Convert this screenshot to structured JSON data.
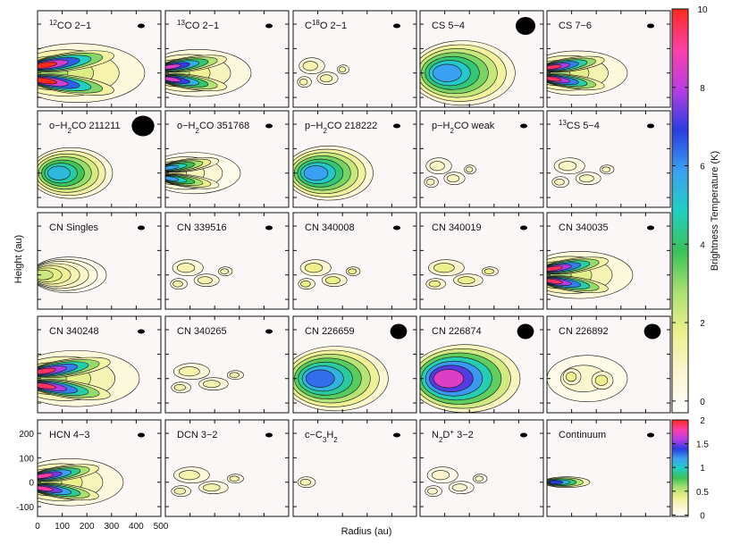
{
  "chart_data": {
    "type": "panel-grid",
    "x_label": "Radius (au)",
    "y_label": "Height (au)",
    "xlim": [
      0,
      500
    ],
    "ylim": [
      -140,
      255
    ],
    "xticks": [
      0,
      100,
      200,
      300,
      400,
      500
    ],
    "yticks": [
      -100,
      0,
      100,
      200
    ],
    "colors": [
      "#ffffff",
      "#fbf6cf",
      "#eef08c",
      "#a8e070",
      "#38c256",
      "#22cfc2",
      "#3aa0f2",
      "#2a3ce0",
      "#b83ee4",
      "#ff3fa8",
      "#ff2a1a"
    ],
    "colorbar": {
      "label": "Brightness Temperature (K)",
      "lim": [
        -0.3,
        10
      ],
      "ticks": [
        0,
        2,
        4,
        6,
        8,
        10
      ]
    },
    "colorbar2": {
      "lim": [
        -0.03,
        2
      ],
      "ticks": [
        0,
        0.5,
        1,
        1.5,
        2
      ]
    },
    "panels": [
      {
        "label": [
          {
            "t": "12",
            "s": "sup"
          },
          {
            "t": "CO 2−1"
          }
        ]
      },
      {
        "label": [
          {
            "t": "13",
            "s": "sup"
          },
          {
            "t": "CO 2−1"
          }
        ]
      },
      {
        "label": [
          {
            "t": "C"
          },
          {
            "t": "18",
            "s": "sup"
          },
          {
            "t": "O 2−1"
          }
        ]
      },
      {
        "label": [
          {
            "t": "CS 5−4"
          }
        ]
      },
      {
        "label": [
          {
            "t": "CS 7−6"
          }
        ]
      },
      {
        "label": [
          {
            "t": "o−H"
          },
          {
            "t": "2",
            "s": "sub"
          },
          {
            "t": "CO 211211"
          }
        ]
      },
      {
        "label": [
          {
            "t": "o−H"
          },
          {
            "t": "2",
            "s": "sub"
          },
          {
            "t": "CO 351768"
          }
        ]
      },
      {
        "label": [
          {
            "t": "p−H"
          },
          {
            "t": "2",
            "s": "sub"
          },
          {
            "t": "CO 218222"
          }
        ]
      },
      {
        "label": [
          {
            "t": "p−H"
          },
          {
            "t": "2",
            "s": "sub"
          },
          {
            "t": "CO weak"
          }
        ]
      },
      {
        "label": [
          {
            "t": "13",
            "s": "sup"
          },
          {
            "t": "CS 5−4"
          }
        ]
      },
      {
        "label": [
          {
            "t": "CN Singles"
          }
        ]
      },
      {
        "label": [
          {
            "t": "CN 339516"
          }
        ]
      },
      {
        "label": [
          {
            "t": "CN 340008"
          }
        ]
      },
      {
        "label": [
          {
            "t": "CN 340019"
          }
        ]
      },
      {
        "label": [
          {
            "t": "CN 340035"
          }
        ]
      },
      {
        "label": [
          {
            "t": "CN 340248"
          }
        ]
      },
      {
        "label": [
          {
            "t": "CN 340265"
          }
        ]
      },
      {
        "label": [
          {
            "t": "CN 226659"
          }
        ]
      },
      {
        "label": [
          {
            "t": "CN 226874"
          }
        ]
      },
      {
        "label": [
          {
            "t": "CN 226892"
          }
        ]
      },
      {
        "label": [
          {
            "t": "HCN 4−3"
          }
        ]
      },
      {
        "label": [
          {
            "t": "DCN 3−2"
          }
        ]
      },
      {
        "label": [
          {
            "t": "c−C"
          },
          {
            "t": "3",
            "s": "sub"
          },
          {
            "t": "H"
          },
          {
            "t": "2",
            "s": "sub"
          }
        ]
      },
      {
        "label": [
          {
            "t": "N"
          },
          {
            "t": "2",
            "s": "sub"
          },
          {
            "t": "D"
          },
          {
            "t": "+",
            "s": "sup"
          },
          {
            "t": " 3−2"
          }
        ]
      },
      {
        "label": [
          {
            "t": "Continuum"
          }
        ]
      }
    ]
  }
}
